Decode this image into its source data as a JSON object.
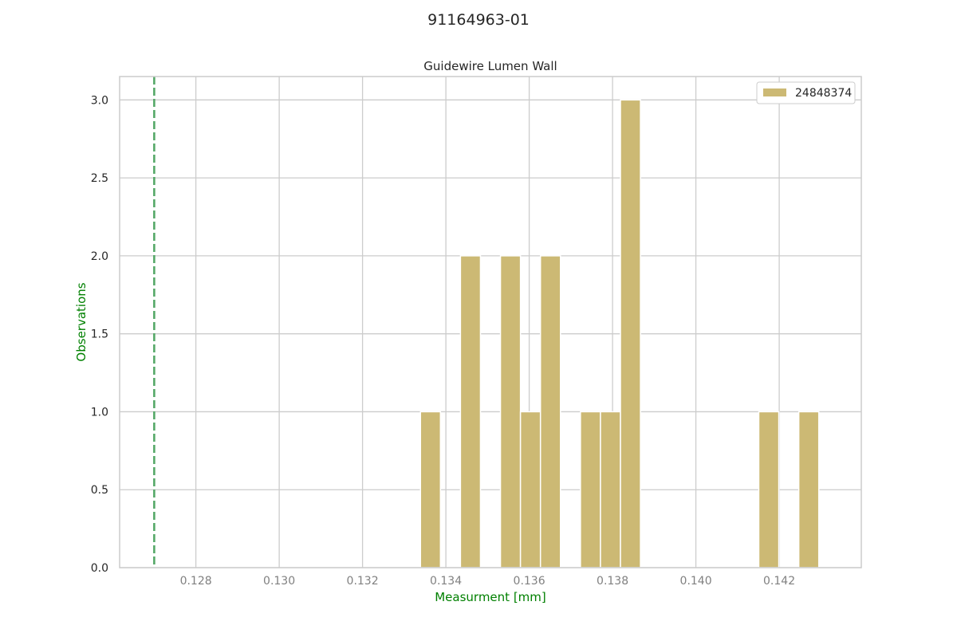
{
  "figure_title": "91164963-01",
  "chart_data": {
    "type": "bar",
    "title": "Guidewire Lumen Wall",
    "xlabel": "Measurment [mm]",
    "ylabel": "Observations",
    "xlim": [
      0.12617,
      0.14397
    ],
    "ylim": [
      0,
      3.15
    ],
    "x_ticks": [
      0.128,
      0.13,
      0.132,
      0.134,
      0.136,
      0.138,
      0.14,
      0.142
    ],
    "y_ticks": [
      0.0,
      0.5,
      1.0,
      1.5,
      2.0,
      2.5,
      3.0
    ],
    "grid": true,
    "legend_position": "top-right",
    "bin_width": 0.00048,
    "series": [
      {
        "name": "24848374",
        "color": "#ccb974",
        "bars": [
          {
            "x": 0.13363,
            "value": 1
          },
          {
            "x": 0.13459,
            "value": 2
          },
          {
            "x": 0.13555,
            "value": 2
          },
          {
            "x": 0.13603,
            "value": 1
          },
          {
            "x": 0.13651,
            "value": 2
          },
          {
            "x": 0.13747,
            "value": 1
          },
          {
            "x": 0.13795,
            "value": 1
          },
          {
            "x": 0.13843,
            "value": 3
          },
          {
            "x": 0.14175,
            "value": 1
          },
          {
            "x": 0.14271,
            "value": 1
          }
        ]
      }
    ],
    "reference_line": {
      "x": 0.127,
      "color": "#55a868",
      "style": "dashed"
    },
    "label_color": "#008000"
  }
}
